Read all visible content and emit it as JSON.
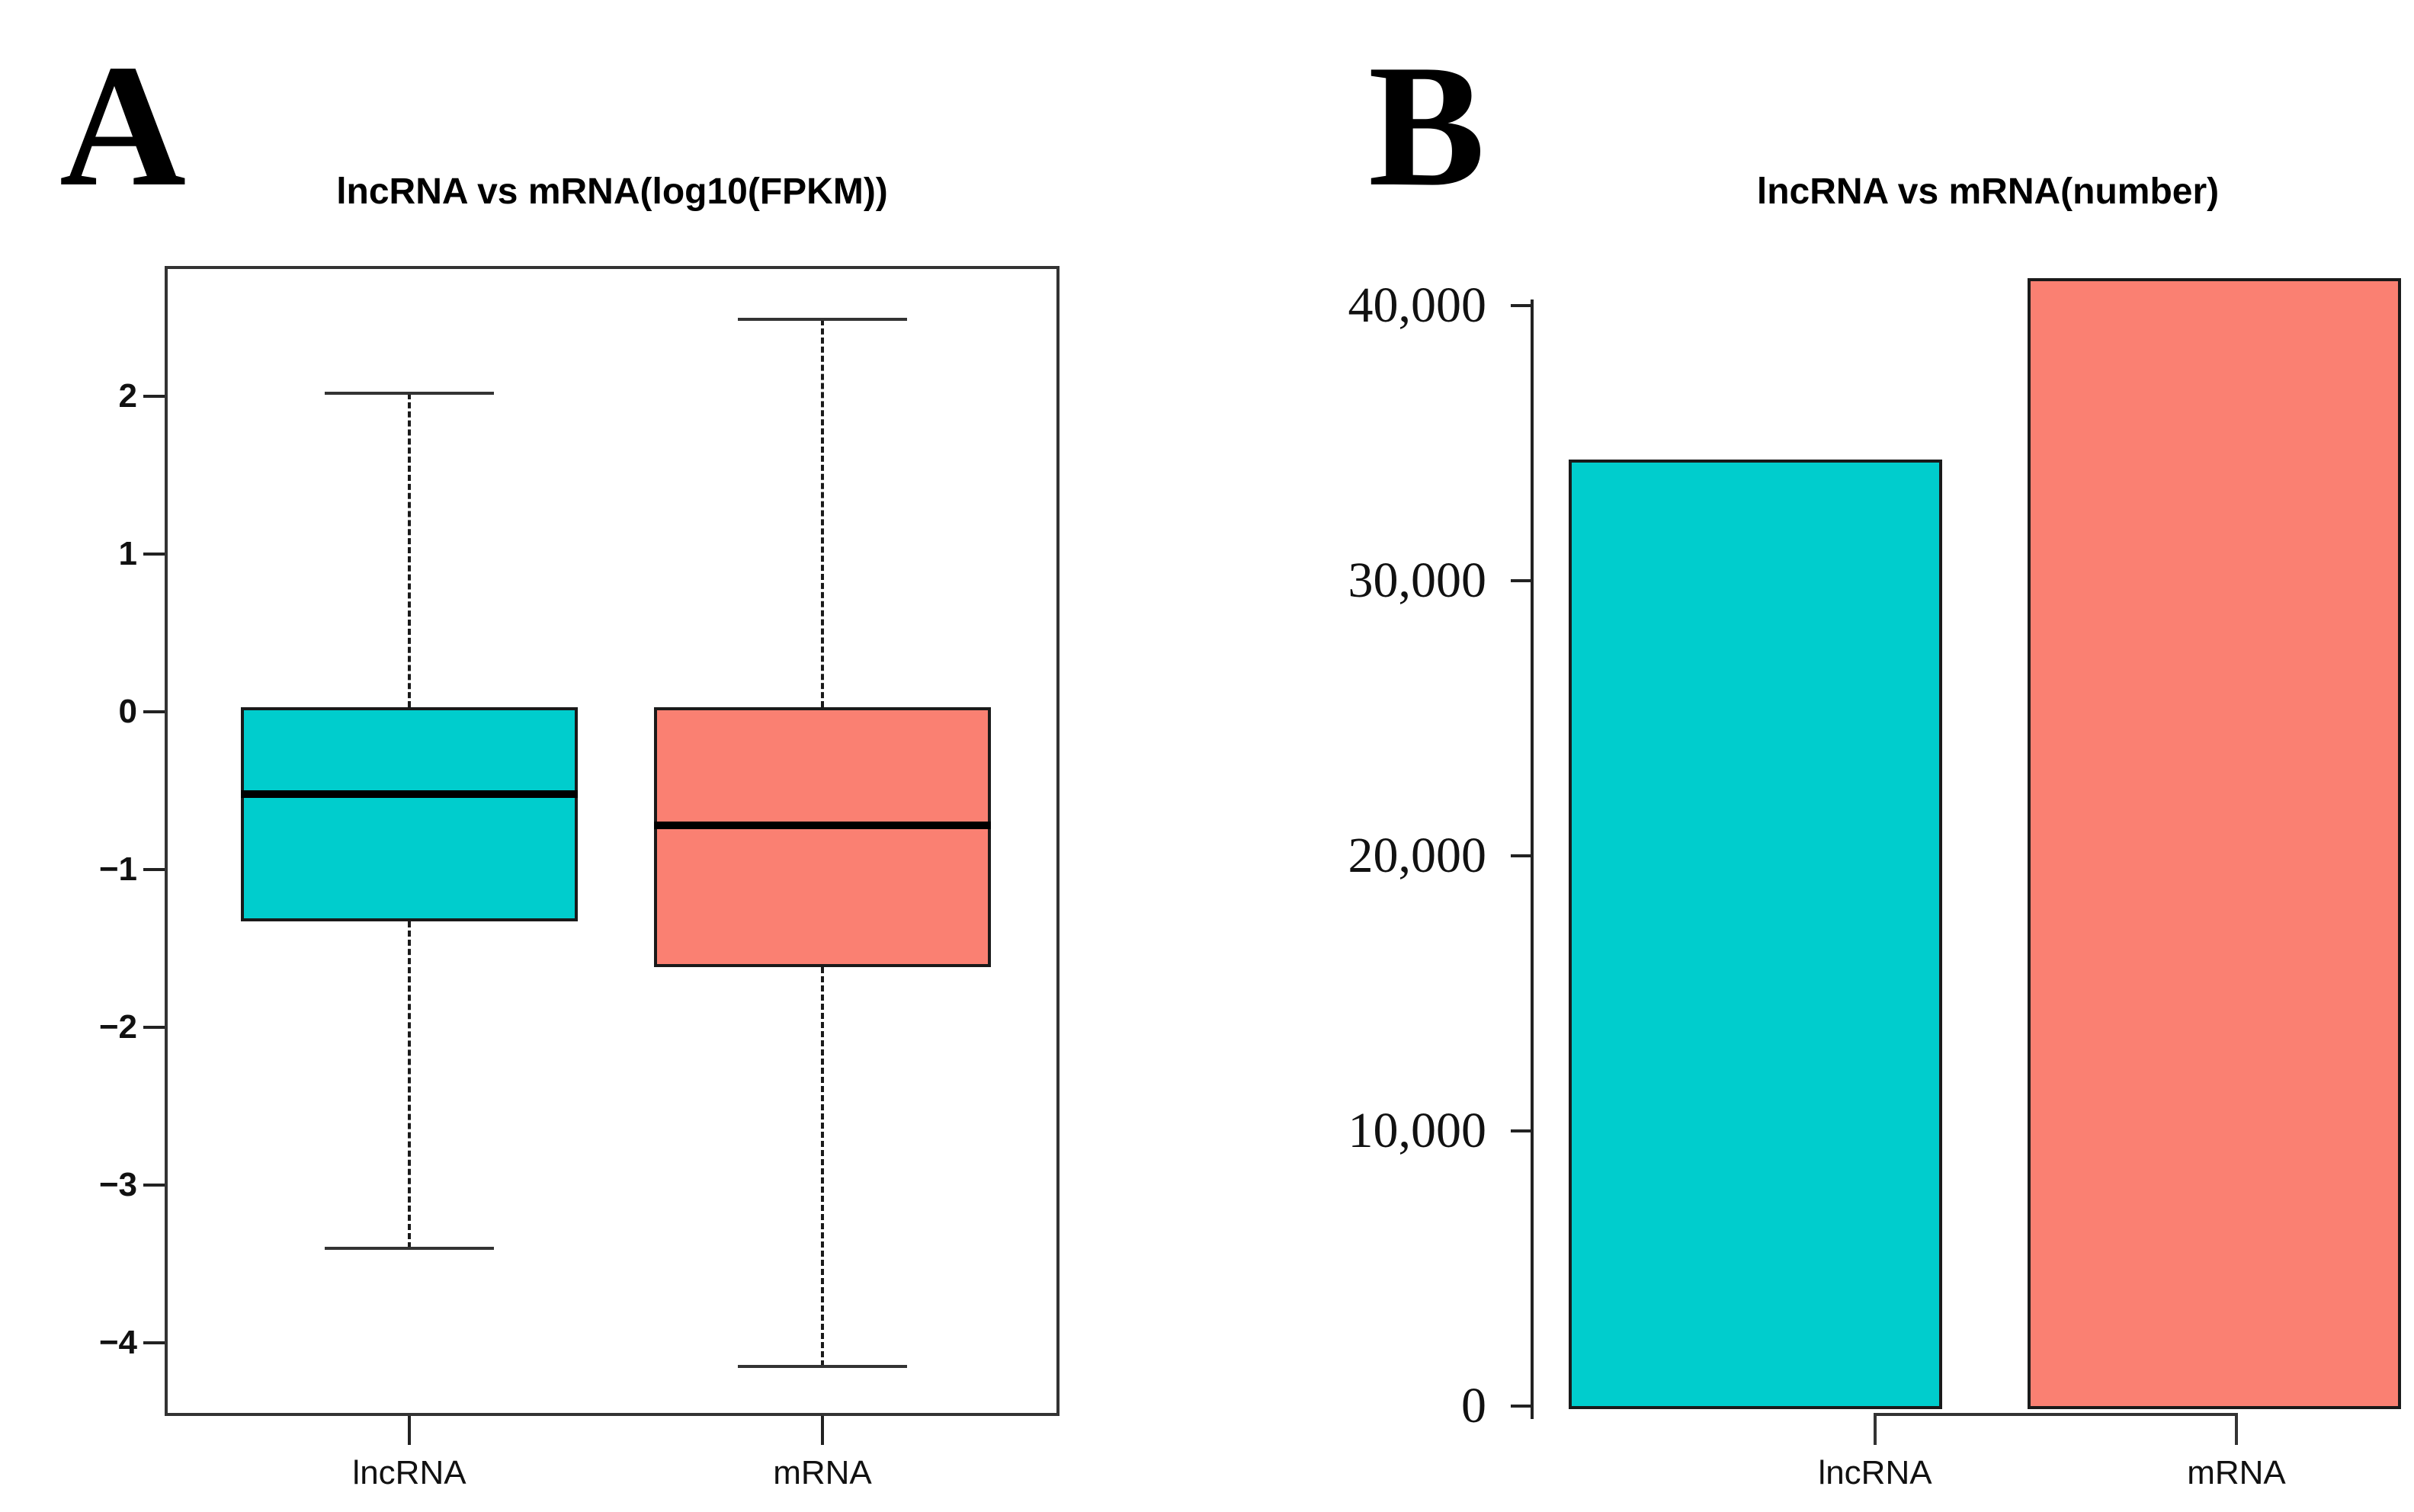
{
  "figure": {
    "background": "#ffffff",
    "accent_colors": {
      "teal": "#00CDCD",
      "salmon": "#FA8072"
    }
  },
  "chart_data": [
    {
      "type": "boxplot",
      "panel": "A",
      "title": "lncRNA vs mRNA(log10(FPKM))",
      "xlabel": "",
      "ylabel": "",
      "categories": [
        "lncRNA",
        "mRNA"
      ],
      "yticks": [
        2,
        1,
        0,
        -1,
        -2,
        -3,
        -4
      ],
      "ytick_labels": [
        "2",
        "1",
        "0",
        "−1",
        "−2",
        "−3",
        "−4"
      ],
      "ylim": [
        -4.45,
        2.83
      ],
      "grid": false,
      "legend_position": "none",
      "series": [
        {
          "name": "lncRNA",
          "color": "#00CDCD",
          "whisker_low": -3.4,
          "q1": -1.33,
          "median": -0.52,
          "q3": 0.03,
          "whisker_high": 2.02
        },
        {
          "name": "mRNA",
          "color": "#FA8072",
          "whisker_low": -4.15,
          "q1": -1.62,
          "median": -0.72,
          "q3": 0.03,
          "whisker_high": 2.49
        }
      ]
    },
    {
      "type": "bar",
      "panel": "B",
      "title": "lncRNA vs mRNA(number)",
      "xlabel": "",
      "ylabel": "",
      "categories": [
        "lncRNA",
        "mRNA"
      ],
      "values": [
        34400,
        41000
      ],
      "colors": [
        "#00CDCD",
        "#FA8072"
      ],
      "yticks": [
        0,
        10000,
        20000,
        30000,
        40000
      ],
      "ytick_labels": [
        "0",
        "10,000",
        "20,000",
        "30,000",
        "40,000"
      ],
      "ylim": [
        0,
        41600
      ],
      "grid": false,
      "legend_position": "none"
    }
  ]
}
